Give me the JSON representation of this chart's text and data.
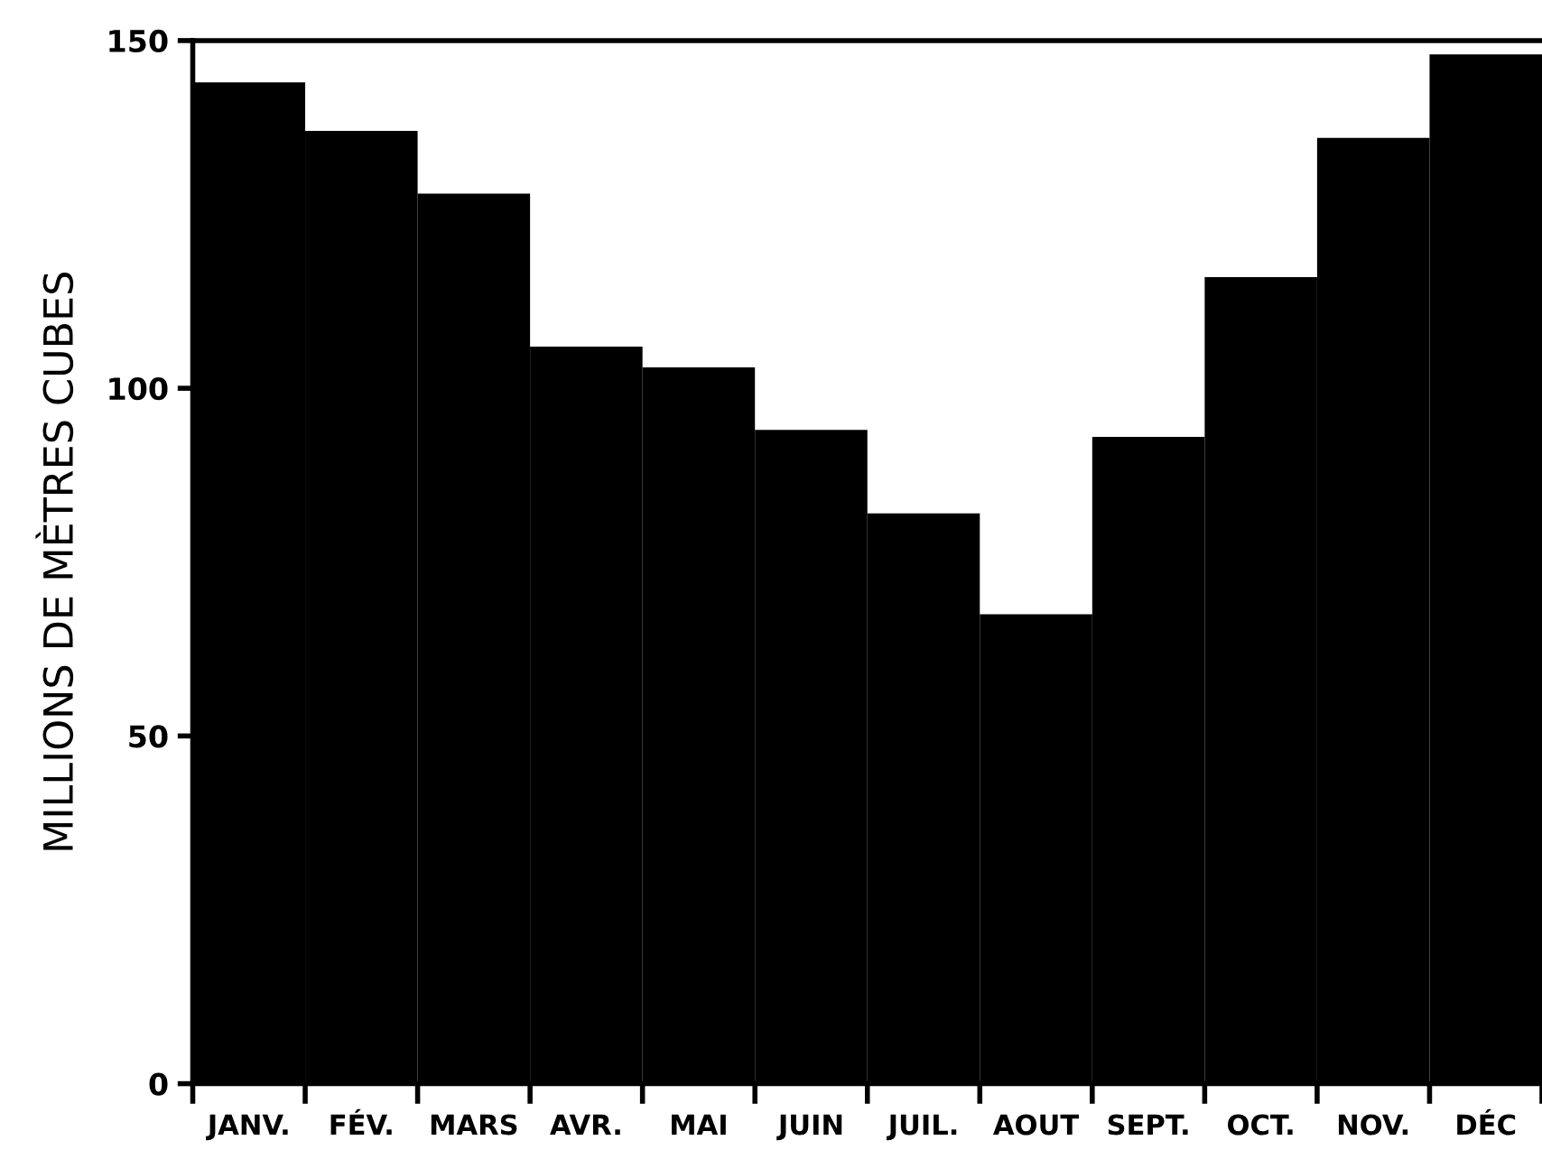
{
  "chart_data": {
    "type": "bar",
    "ylabel": "MILLIONS DE MÈTRES CUBES",
    "categories": [
      "JANV.",
      "FÉV.",
      "MARS",
      "AVR.",
      "MAI",
      "JUIN",
      "JUIL.",
      "AOUT",
      "SEPT.",
      "OCT.",
      "NOV.",
      "DÉC"
    ],
    "values": [
      144,
      137,
      128,
      106,
      103,
      94,
      82,
      67.5,
      93,
      116,
      136,
      148
    ],
    "color": "#000000",
    "ylim": [
      0,
      150
    ],
    "yticks": [
      0,
      50,
      100,
      150
    ],
    "grid": false
  }
}
